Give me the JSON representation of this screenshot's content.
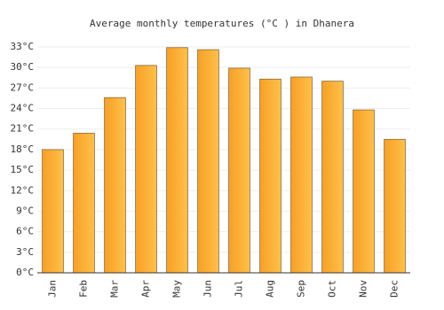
{
  "chart_data": {
    "type": "bar",
    "title": "Average monthly temperatures (°C ) in Dhanera",
    "categories": [
      "Jan",
      "Feb",
      "Mar",
      "Apr",
      "May",
      "Jun",
      "Jul",
      "Aug",
      "Sep",
      "Oct",
      "Nov",
      "Dec"
    ],
    "values": [
      18.0,
      20.4,
      25.6,
      30.3,
      32.9,
      32.6,
      29.9,
      28.3,
      28.6,
      28.0,
      23.8,
      19.5
    ],
    "color": "#f7a024",
    "ylim": [
      0,
      33
    ],
    "yticks": [
      {
        "value": 0,
        "label": "0°C"
      },
      {
        "value": 3,
        "label": "3°C"
      },
      {
        "value": 6,
        "label": "6°C"
      },
      {
        "value": 9,
        "label": "9°C"
      },
      {
        "value": 12,
        "label": "12°C"
      },
      {
        "value": 15,
        "label": "15°C"
      },
      {
        "value": 18,
        "label": "18°C"
      },
      {
        "value": 21,
        "label": "21°C"
      },
      {
        "value": 24,
        "label": "24°C"
      },
      {
        "value": 27,
        "label": "27°C"
      },
      {
        "value": 30,
        "label": "30°C"
      },
      {
        "value": 33,
        "label": "33°C"
      }
    ],
    "grid": true
  }
}
